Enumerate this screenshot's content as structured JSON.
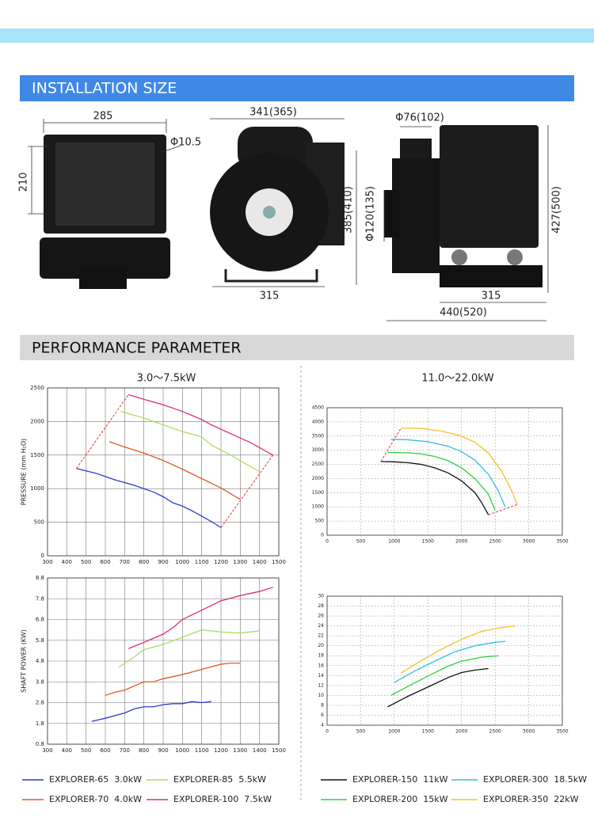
{
  "header": {
    "installation_title": "INSTALLATION SIZE",
    "performance_title": "PERFORMANCE PARAMETER"
  },
  "dimensions": {
    "front_width": "285",
    "front_height": "210",
    "hole": "Φ10.5",
    "side_width": "341(365)",
    "side_height": "385(410)",
    "side_base": "315",
    "outlet": "Φ76(102)",
    "inlet": "Φ120(135)",
    "rear_height": "427(500)",
    "rear_base": "315",
    "rear_length": "440(520)"
  },
  "groups": [
    "3.0～7.5kW",
    "11.0～22.0kW"
  ],
  "chart_data": [
    {
      "type": "line",
      "ylabel": "PRESSURE (mm H₂O)",
      "xlim": [
        300,
        1500
      ],
      "ylim": [
        0,
        2500
      ],
      "xticks": [
        300,
        400,
        500,
        600,
        700,
        800,
        900,
        1000,
        1100,
        1200,
        1300,
        1400,
        1500
      ],
      "yticks": [
        0,
        500,
        1000,
        1500,
        2000,
        2500
      ],
      "grid": true,
      "grid_style": "solid",
      "envelope": true,
      "series": [
        {
          "name": "EXPLORER-65  3.0kW",
          "color": "#2a3bd0",
          "x": [
            450,
            550,
            650,
            750,
            850,
            900,
            950,
            1000,
            1050,
            1100,
            1150,
            1200
          ],
          "values": [
            1300,
            1230,
            1130,
            1050,
            950,
            880,
            790,
            740,
            670,
            590,
            510,
            420
          ]
        },
        {
          "name": "EXPLORER-70  4.0kW",
          "color": "#e05a2a",
          "x": [
            620,
            700,
            800,
            900,
            1000,
            1100,
            1200,
            1300
          ],
          "values": [
            1700,
            1620,
            1530,
            1420,
            1290,
            1150,
            1010,
            840
          ]
        },
        {
          "name": "EXPLORER-85  5.5kW",
          "color": "#a8e05a",
          "x": [
            680,
            800,
            900,
            1000,
            1100,
            1150,
            1250,
            1400
          ],
          "values": [
            2150,
            2050,
            1950,
            1850,
            1770,
            1650,
            1500,
            1250
          ]
        },
        {
          "name": "EXPLORER-100  7.5kW",
          "color": "#e0306a",
          "x": [
            720,
            800,
            900,
            1000,
            1100,
            1150,
            1250,
            1350,
            1470
          ],
          "values": [
            2400,
            2330,
            2250,
            2150,
            2030,
            1950,
            1820,
            1690,
            1500
          ]
        }
      ]
    },
    {
      "type": "line",
      "ylabel": "SHAFT POWER (KW)",
      "xlim": [
        300,
        1500
      ],
      "ylim": [
        0.8,
        8.8
      ],
      "xticks": [
        300,
        400,
        500,
        600,
        700,
        800,
        900,
        1000,
        1100,
        1200,
        1300,
        1400,
        1500
      ],
      "yticks": [
        0.8,
        1.8,
        2.8,
        3.8,
        4.8,
        5.8,
        6.8,
        7.8,
        8.8
      ],
      "grid": true,
      "grid_style": "solid",
      "envelope": false,
      "series": [
        {
          "color": "#2a3bd0",
          "x": [
            530,
            600,
            700,
            750,
            800,
            850,
            900,
            950,
            1000,
            1050,
            1100,
            1150
          ],
          "values": [
            1.9,
            2.05,
            2.3,
            2.5,
            2.6,
            2.6,
            2.7,
            2.75,
            2.75,
            2.85,
            2.8,
            2.85
          ]
        },
        {
          "color": "#e05a2a",
          "x": [
            600,
            650,
            700,
            750,
            800,
            850,
            900,
            1000,
            1100,
            1200,
            1250,
            1300
          ],
          "values": [
            3.15,
            3.3,
            3.4,
            3.6,
            3.8,
            3.8,
            3.95,
            4.15,
            4.4,
            4.65,
            4.7,
            4.7
          ]
        },
        {
          "color": "#a8e05a",
          "x": [
            670,
            700,
            750,
            800,
            900,
            1000,
            1100,
            1150,
            1200,
            1300,
            1400
          ],
          "values": [
            4.5,
            4.7,
            5.0,
            5.35,
            5.6,
            5.95,
            6.3,
            6.25,
            6.2,
            6.15,
            6.25
          ]
        },
        {
          "color": "#e0306a",
          "x": [
            720,
            800,
            900,
            950,
            1000,
            1100,
            1200,
            1300,
            1400,
            1470
          ],
          "values": [
            5.4,
            5.7,
            6.1,
            6.4,
            6.8,
            7.25,
            7.7,
            7.95,
            8.15,
            8.35
          ]
        }
      ]
    },
    {
      "type": "line",
      "xlim": [
        0,
        3500
      ],
      "ylim": [
        0,
        4500
      ],
      "xticks": [
        0,
        500,
        1000,
        1500,
        2000,
        2500,
        3000,
        3500
      ],
      "yticks": [
        0,
        500,
        1000,
        1500,
        2000,
        2500,
        3000,
        3500,
        4000,
        4500
      ],
      "grid": true,
      "grid_style": "dashed",
      "envelope": true,
      "series": [
        {
          "name": "EXPLORER-150  11kW",
          "color": "#111111",
          "x": [
            800,
            1000,
            1200,
            1400,
            1600,
            1800,
            2000,
            2200,
            2300,
            2400
          ],
          "values": [
            2600,
            2590,
            2560,
            2500,
            2380,
            2200,
            1920,
            1500,
            1150,
            720
          ]
        },
        {
          "name": "EXPLORER-200  15kW",
          "color": "#30d040",
          "x": [
            900,
            1200,
            1400,
            1600,
            1800,
            2000,
            2200,
            2400,
            2500
          ],
          "values": [
            2920,
            2910,
            2870,
            2780,
            2630,
            2380,
            2000,
            1450,
            880
          ]
        },
        {
          "name": "EXPLORER-300  18.5kW",
          "color": "#30c0e0",
          "x": [
            950,
            1200,
            1500,
            1800,
            2000,
            2200,
            2400,
            2550,
            2650
          ],
          "values": [
            3380,
            3370,
            3300,
            3140,
            2950,
            2650,
            2150,
            1550,
            1000
          ]
        },
        {
          "name": "EXPLORER-350  22kW",
          "color": "#f8c020",
          "x": [
            1100,
            1400,
            1700,
            2000,
            2200,
            2400,
            2600,
            2750,
            2830
          ],
          "values": [
            3780,
            3770,
            3680,
            3500,
            3280,
            2900,
            2250,
            1550,
            1080
          ]
        }
      ]
    },
    {
      "type": "line",
      "xlim": [
        0,
        3500
      ],
      "ylim": [
        4,
        30
      ],
      "xticks": [
        0,
        500,
        1000,
        1500,
        2000,
        2500,
        3000,
        3500
      ],
      "yticks": [
        4,
        6,
        8,
        10,
        12,
        14,
        16,
        18,
        20,
        22,
        24,
        26,
        28,
        30
      ],
      "grid": true,
      "grid_style": "dashed",
      "envelope": false,
      "series": [
        {
          "color": "#111111",
          "x": [
            900,
            1200,
            1500,
            1800,
            2000,
            2200,
            2400
          ],
          "values": [
            7.7,
            9.8,
            11.7,
            13.6,
            14.6,
            15.1,
            15.4
          ]
        },
        {
          "color": "#30d040",
          "x": [
            950,
            1200,
            1500,
            1800,
            2000,
            2300,
            2550
          ],
          "values": [
            10,
            11.8,
            13.9,
            15.9,
            16.9,
            17.7,
            18
          ]
        },
        {
          "color": "#30c0e0",
          "x": [
            1000,
            1300,
            1600,
            1900,
            2200,
            2500,
            2650
          ],
          "values": [
            12.6,
            14.9,
            16.9,
            18.8,
            20,
            20.7,
            20.9
          ]
        },
        {
          "color": "#f8c020",
          "x": [
            1100,
            1400,
            1700,
            2000,
            2300,
            2600,
            2800
          ],
          "values": [
            14.5,
            17,
            19.3,
            21.3,
            22.9,
            23.7,
            24
          ]
        }
      ]
    }
  ]
}
